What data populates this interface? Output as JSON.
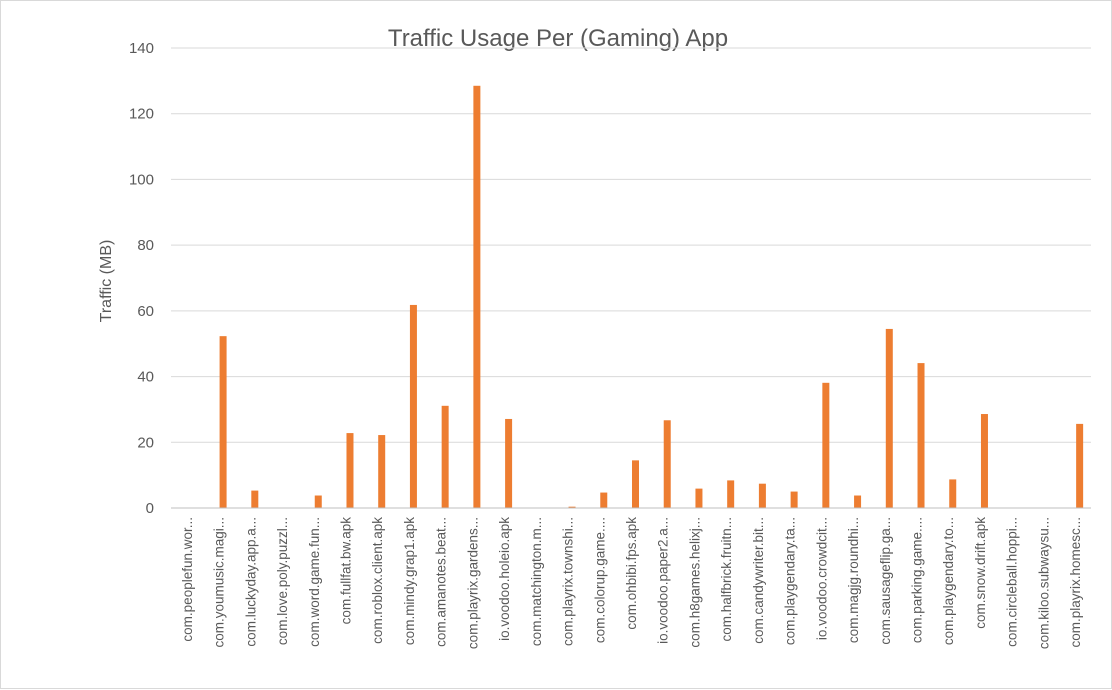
{
  "chart_data": {
    "type": "bar",
    "title": "Traffic Usage Per (Gaming) App",
    "xlabel": "",
    "ylabel": "Traffic (MB)",
    "ylim": [
      0,
      140
    ],
    "yticks": [
      "0",
      "20",
      "40",
      "60",
      "80",
      "100",
      "120",
      "140"
    ],
    "grid": true,
    "legend": "none",
    "bar_color": "#ED7D31",
    "categories": [
      "com.peoplefun.wor...",
      "com.youmusic.magi...",
      "com.luckyday.app.a...",
      "com.love.poly.puzzl...",
      "com.word.game.fun...",
      "com.fullfat.bw.apk",
      "com.roblox.client.apk",
      "com.mindy.grap1.apk",
      "com.amanotes.beat...",
      "com.playrix.gardens...",
      "io.voodoo.holeio.apk",
      "com.matchington.m...",
      "com.playrix.townshi...",
      "com.colorup.game....",
      "com.ohbibi.fps.apk",
      "io.voodoo.paper2.a...",
      "com.h8games.helixj...",
      "com.halfbrick.fruitn...",
      "com.candywriter.bit...",
      "com.playgendary.ta...",
      "io.voodoo.crowdcit...",
      "com.magjg.roundhi...",
      "com.sausageflip.ga...",
      "com.parking.game....",
      "com.playgendary.to...",
      "com.snow.drift.apk",
      "com.circleball.hoppi...",
      "com.kiloo.subwaysu...",
      "com.playrix.homesc..."
    ],
    "values": [
      0,
      52.3,
      5.3,
      0,
      3.8,
      22.8,
      22.2,
      61.8,
      31.1,
      128.5,
      27.1,
      0,
      0.4,
      4.7,
      14.5,
      26.7,
      5.9,
      8.4,
      7.4,
      5.0,
      38.1,
      3.8,
      54.5,
      44.1,
      8.7,
      28.6,
      0,
      0,
      25.6
    ]
  }
}
